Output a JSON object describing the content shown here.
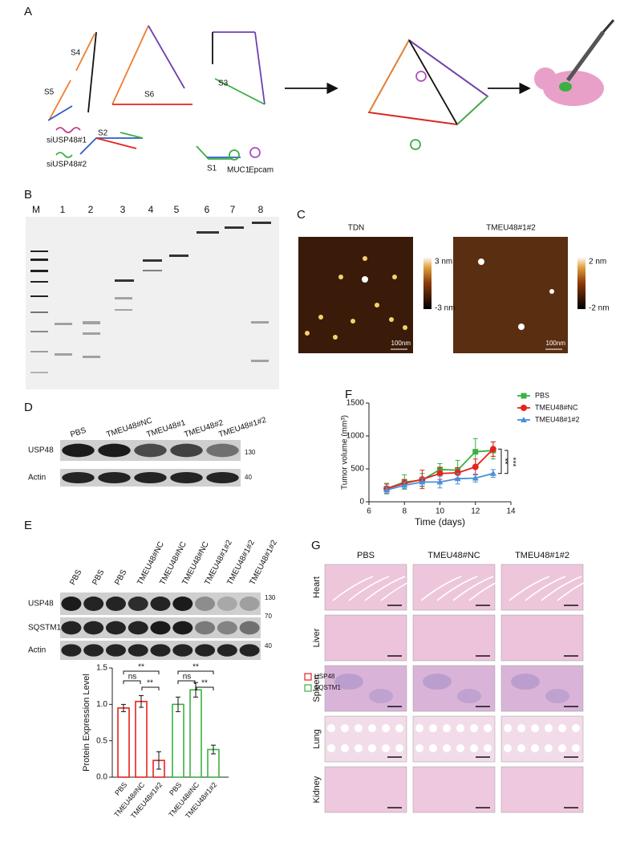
{
  "figure": {
    "panel_labels": [
      "A",
      "B",
      "C",
      "D",
      "E",
      "F",
      "G"
    ],
    "A": {
      "strands": [
        "S4",
        "S5",
        "S6",
        "S3",
        "S2",
        "S1"
      ],
      "sirnas": [
        "siUSP48#1",
        "siUSP48#2"
      ],
      "aptamers": [
        "MUC1",
        "Epcam"
      ]
    },
    "B": {
      "lanes": [
        "M",
        "1",
        "2",
        "3",
        "4",
        "5",
        "6",
        "7",
        "8"
      ]
    },
    "C": {
      "images": [
        {
          "title": "TDN",
          "max": "3 nm",
          "min": "-3 nm",
          "scale": "100nm"
        },
        {
          "title": "TMEU48#1#2",
          "max": "2 nm",
          "min": "-2 nm",
          "scale": "100nm"
        }
      ]
    },
    "D": {
      "samples": [
        "PBS",
        "TMEU48#NC",
        "TMEU48#1",
        "TMEU48#2",
        "TMEU48#1#2"
      ],
      "proteins": [
        "USP48",
        "Actin"
      ],
      "markers": [
        "130",
        "40"
      ]
    },
    "E": {
      "samples": [
        "PBS",
        "PBS",
        "PBS",
        "TMEU48#NC",
        "TMEU48#NC",
        "TMEU48#NC",
        "TMEU48#1#2",
        "TMEU48#1#2",
        "TMEU48#1#2"
      ],
      "proteins": [
        "USP48",
        "SQSTM1",
        "Actin"
      ],
      "markers": [
        "130",
        "70",
        "40"
      ]
    },
    "G": {
      "columns": [
        "PBS",
        "TMEU48#NC",
        "TMEU48#1#2"
      ],
      "organs": [
        "Heart",
        "Liver",
        "Spleen",
        "Lung",
        "Kidney"
      ]
    }
  },
  "chart_data": [
    {
      "type": "line",
      "xlabel": "Time (days)",
      "ylabel": "Tumor volume (mm³)",
      "x": [
        7,
        8,
        9,
        10,
        11,
        12,
        13
      ],
      "xlim": [
        6,
        14
      ],
      "xticks": [
        6,
        8,
        10,
        12,
        14
      ],
      "ylim": [
        0,
        1500
      ],
      "yticks": [
        0,
        500,
        1000,
        1500
      ],
      "legend": "right",
      "series": [
        {
          "name": "PBS",
          "color": "#3cb043",
          "values": [
            200,
            300,
            330,
            490,
            480,
            760,
            780
          ],
          "errors": [
            80,
            110,
            100,
            90,
            150,
            200,
            130
          ]
        },
        {
          "name": "TMEU48#NC",
          "color": "#e8221c",
          "values": [
            200,
            280,
            340,
            430,
            440,
            530,
            800
          ],
          "errors": [
            70,
            60,
            140,
            90,
            80,
            120,
            110
          ]
        },
        {
          "name": "TMEU48#1#2",
          "color": "#4a90d9",
          "values": [
            180,
            250,
            300,
            300,
            350,
            360,
            430
          ],
          "errors": [
            50,
            50,
            60,
            90,
            80,
            60,
            60
          ]
        }
      ],
      "annotations": [
        "**",
        "***"
      ]
    },
    {
      "type": "bar",
      "ylabel": "Protein Expression Level",
      "categories": [
        "PBS",
        "TMEU48#NC",
        "TMEU48#1#2",
        "PBS",
        "TMEU48#NC",
        "TMEU48#1#2"
      ],
      "ylim": [
        0,
        1.5
      ],
      "yticks": [
        {
          "value": 0,
          "label": "0.0"
        },
        {
          "value": 0.5,
          "label": "0.5"
        },
        {
          "value": 1,
          "label": "1.0"
        },
        {
          "value": 1.5,
          "label": "1.5"
        }
      ],
      "legend": "right",
      "series": [
        {
          "name": "USP48",
          "color": "#e8221c",
          "values": [
            0.95,
            1.04,
            0.23,
            null,
            null,
            null
          ],
          "errors": [
            0.05,
            0.08,
            0.12,
            null,
            null,
            null
          ]
        },
        {
          "name": "SQSTM1",
          "color": "#3cb043",
          "values": [
            null,
            null,
            null,
            1.0,
            1.2,
            0.38
          ],
          "errors": [
            null,
            null,
            null,
            0.1,
            0.1,
            0.06
          ]
        }
      ],
      "annotations": [
        "**",
        "ns",
        "**",
        "**",
        "ns",
        "**"
      ]
    }
  ]
}
